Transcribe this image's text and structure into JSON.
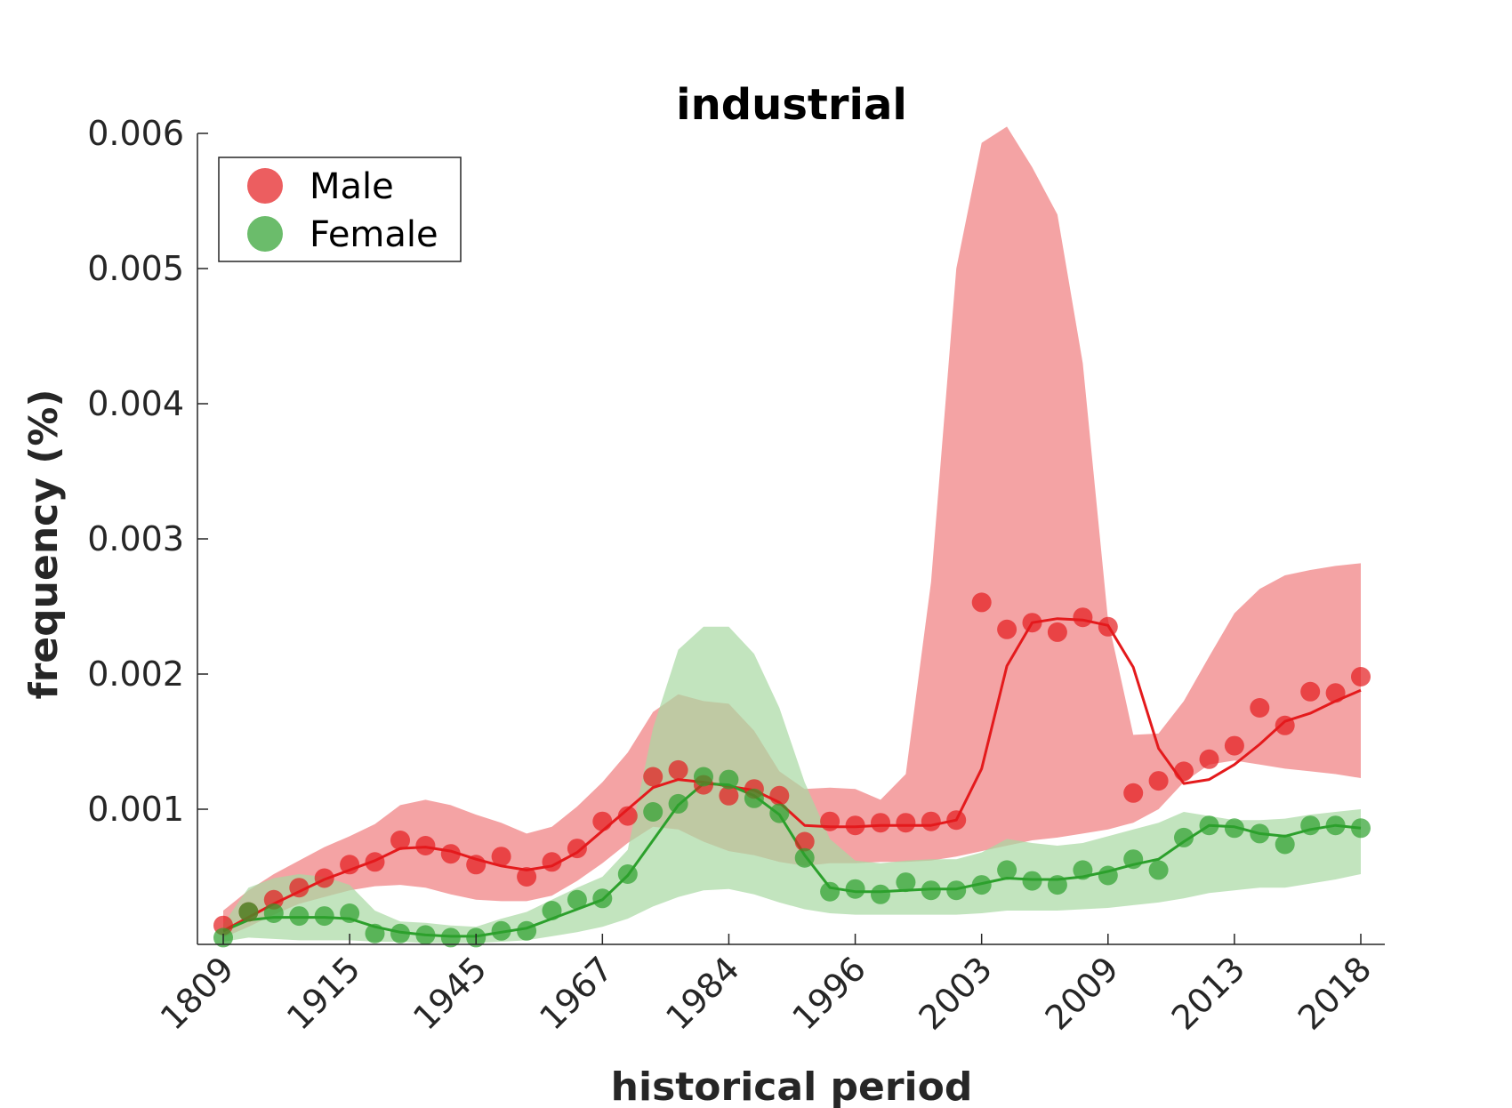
{
  "chart_data": {
    "type": "line",
    "title": "industrial",
    "xlabel": "historical period",
    "ylabel": "frequency (%)",
    "x_tick_labels": [
      "1809",
      "1915",
      "1945",
      "1967",
      "1984",
      "1996",
      "2003",
      "2009",
      "2013",
      "2018"
    ],
    "y_tick_labels": [
      "0.001",
      "0.002",
      "0.003",
      "0.004",
      "0.005",
      "0.006"
    ],
    "y_ticks": [
      0.001,
      0.002,
      0.003,
      0.004,
      0.005,
      0.006
    ],
    "ylim": [
      0,
      0.006
    ],
    "n_points": 46,
    "legend": {
      "position": "top-left",
      "entries": [
        "Male",
        "Female"
      ]
    },
    "series": [
      {
        "name": "Male",
        "color": "#e41a1c",
        "band_color": "#f4a3a4",
        "points": [
          0.00014,
          0.00024,
          0.00033,
          0.00042,
          0.00049,
          0.00059,
          0.00061,
          0.00077,
          0.00073,
          0.00067,
          0.00059,
          0.00065,
          0.0005,
          0.00061,
          0.00071,
          0.00091,
          0.00095,
          0.00124,
          0.00129,
          0.00118,
          0.0011,
          0.00115,
          0.0011,
          0.00076,
          0.00091,
          0.00088,
          0.0009,
          0.0009,
          0.00091,
          0.00092,
          0.00253,
          0.00233,
          0.00238,
          0.00231,
          0.00242,
          0.00235,
          0.00112,
          0.00121,
          0.00128,
          0.00137,
          0.00147,
          0.00175,
          0.00162,
          0.00187,
          0.00186,
          0.00198
        ],
        "trend": [
          0.0001,
          0.0002,
          0.0003,
          0.00039,
          0.00048,
          0.00055,
          0.00062,
          0.00071,
          0.00072,
          0.00069,
          0.00063,
          0.00058,
          0.00055,
          0.00058,
          0.00068,
          0.00084,
          0.001,
          0.00116,
          0.00122,
          0.0012,
          0.00117,
          0.00114,
          0.00105,
          0.00088,
          0.00087,
          0.00087,
          0.00088,
          0.00088,
          0.00088,
          0.00092,
          0.0013,
          0.00206,
          0.00238,
          0.00241,
          0.0024,
          0.00236,
          0.00205,
          0.00145,
          0.00119,
          0.00122,
          0.00133,
          0.00148,
          0.00165,
          0.00171,
          0.0018,
          0.00188
        ],
        "upper": [
          0.00025,
          0.0004,
          0.00052,
          0.00062,
          0.00072,
          0.0008,
          0.00089,
          0.00103,
          0.00107,
          0.00103,
          0.00096,
          0.0009,
          0.00082,
          0.00087,
          0.00102,
          0.0012,
          0.00142,
          0.00172,
          0.00185,
          0.0018,
          0.00178,
          0.00158,
          0.00128,
          0.00115,
          0.00116,
          0.00115,
          0.00107,
          0.00126,
          0.00268,
          0.005,
          0.00593,
          0.00605,
          0.00575,
          0.0054,
          0.0043,
          0.0024,
          0.00155,
          0.00156,
          0.0018,
          0.00213,
          0.00245,
          0.00263,
          0.00273,
          0.00277,
          0.0028,
          0.00282
        ],
        "lower": [
          5e-05,
          0.00013,
          0.00022,
          0.0003,
          0.00035,
          0.0004,
          0.00043,
          0.00044,
          0.00042,
          0.00037,
          0.00033,
          0.00032,
          0.00032,
          0.00036,
          0.00047,
          0.0006,
          0.00075,
          0.00087,
          0.00085,
          0.00076,
          0.00069,
          0.00066,
          0.00061,
          0.00058,
          0.0006,
          0.0006,
          0.00061,
          0.00061,
          0.00062,
          0.00065,
          0.00069,
          0.00073,
          0.00077,
          0.00079,
          0.00082,
          0.00085,
          0.0009,
          0.001,
          0.0012,
          0.00133,
          0.00136,
          0.00133,
          0.0013,
          0.00128,
          0.00126,
          0.00123
        ]
      },
      {
        "name": "Female",
        "color": "#2ca02c",
        "band_color": "#a8d9a2",
        "points": [
          5e-05,
          0.00024,
          0.00023,
          0.00021,
          0.00021,
          0.00023,
          8e-05,
          8e-05,
          7e-05,
          5e-05,
          5e-05,
          0.0001,
          0.0001,
          0.00025,
          0.00033,
          0.00034,
          0.00052,
          0.00098,
          0.00104,
          0.00124,
          0.00122,
          0.00108,
          0.00097,
          0.00064,
          0.00039,
          0.00041,
          0.00037,
          0.00046,
          0.0004,
          0.0004,
          0.00044,
          0.00055,
          0.00047,
          0.00044,
          0.00055,
          0.00051,
          0.00063,
          0.00055,
          0.00079,
          0.00088,
          0.00086,
          0.00082,
          0.00074,
          0.00088,
          0.00088,
          0.00086
        ],
        "trend": [
          0.0001,
          0.00018,
          0.0002,
          0.0002,
          0.0002,
          0.00019,
          0.00013,
          9e-05,
          7e-05,
          6e-05,
          6e-05,
          9e-05,
          0.00012,
          0.00019,
          0.00026,
          0.00033,
          0.00051,
          0.00077,
          0.00103,
          0.00119,
          0.00118,
          0.0011,
          0.00096,
          0.00066,
          0.00042,
          0.00039,
          0.00039,
          0.0004,
          0.00041,
          0.00041,
          0.00045,
          0.00049,
          0.00048,
          0.00048,
          0.0005,
          0.00054,
          0.00059,
          0.00063,
          0.00076,
          0.00088,
          0.00087,
          0.00082,
          0.0008,
          0.00085,
          0.00088,
          0.00086
        ],
        "upper": [
          0.00015,
          0.00042,
          0.00049,
          0.00052,
          0.0005,
          0.00044,
          0.00025,
          0.00017,
          0.00016,
          0.00014,
          0.00013,
          0.00019,
          0.00024,
          0.00033,
          0.00042,
          0.0005,
          0.0007,
          0.0016,
          0.00218,
          0.00235,
          0.00235,
          0.00215,
          0.00175,
          0.0012,
          0.00078,
          0.00062,
          0.0006,
          0.00062,
          0.00063,
          0.00063,
          0.00068,
          0.00078,
          0.00075,
          0.00073,
          0.00075,
          0.0008,
          0.00085,
          0.0009,
          0.00098,
          0.00095,
          0.00092,
          0.00092,
          0.00093,
          0.00096,
          0.00098,
          0.001
        ],
        "lower": [
          2e-05,
          5e-05,
          4e-05,
          3e-05,
          3e-05,
          3e-05,
          2e-05,
          2e-05,
          1e-05,
          1e-05,
          1e-05,
          2e-05,
          3e-05,
          6e-05,
          9e-05,
          0.00013,
          0.00019,
          0.00028,
          0.00035,
          0.0004,
          0.00041,
          0.00037,
          0.00031,
          0.00026,
          0.00023,
          0.00022,
          0.00022,
          0.00022,
          0.00022,
          0.00022,
          0.00023,
          0.00025,
          0.00025,
          0.00025,
          0.00026,
          0.00027,
          0.00029,
          0.00031,
          0.00034,
          0.00038,
          0.0004,
          0.00042,
          0.00042,
          0.00045,
          0.00048,
          0.00052
        ]
      }
    ]
  }
}
